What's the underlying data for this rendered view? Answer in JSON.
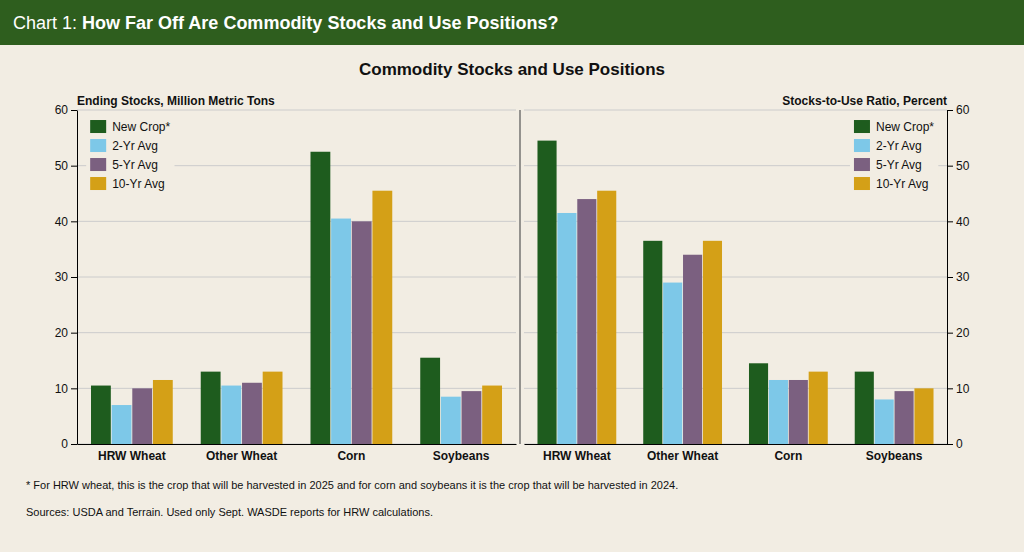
{
  "banner": {
    "prefix": "Chart 1: ",
    "text": "How Far Off Are Commodity Stocks and Use Positions?"
  },
  "title": "Commodity Stocks and Use Positions",
  "footnotes": [
    "* For HRW wheat, this is the crop that will be harvested in 2025 and for corn and soybeans it is the crop that will be harvested in 2024.",
    "Sources: USDA and Terrain. Used only Sept. WASDE reports for HRW calculations."
  ],
  "chart_data": [
    {
      "type": "bar",
      "ylabel": "Ending Stocks, Million Metric Tons",
      "categories": [
        "HRW Wheat",
        "Other Wheat",
        "Corn",
        "Soybeans"
      ],
      "series": [
        {
          "name": "New Crop*",
          "color": "#1e5c1e",
          "values": [
            10.5,
            13.0,
            52.5,
            15.5
          ]
        },
        {
          "name": "2-Yr Avg",
          "color": "#7dc8e8",
          "values": [
            7.0,
            10.5,
            40.5,
            8.5
          ]
        },
        {
          "name": "5-Yr Avg",
          "color": "#7b6080",
          "values": [
            10.0,
            11.0,
            40.0,
            9.5
          ]
        },
        {
          "name": "10-Yr Avg",
          "color": "#d4a017",
          "values": [
            11.5,
            13.0,
            45.5,
            10.5
          ]
        }
      ],
      "ylim": [
        0,
        60
      ],
      "yticks": [
        0,
        10,
        20,
        30,
        40,
        50,
        60
      ],
      "grid": true,
      "legend": "upper left"
    },
    {
      "type": "bar",
      "ylabel": "Stocks-to-Use Ratio, Percent",
      "categories": [
        "HRW Wheat",
        "Other Wheat",
        "Corn",
        "Soybeans"
      ],
      "series": [
        {
          "name": "New Crop*",
          "color": "#1e5c1e",
          "values": [
            54.5,
            36.5,
            14.5,
            13.0
          ]
        },
        {
          "name": "2-Yr Avg",
          "color": "#7dc8e8",
          "values": [
            41.5,
            29.0,
            11.5,
            8.0
          ]
        },
        {
          "name": "5-Yr Avg",
          "color": "#7b6080",
          "values": [
            44.0,
            34.0,
            11.5,
            9.5
          ]
        },
        {
          "name": "10-Yr Avg",
          "color": "#d4a017",
          "values": [
            45.5,
            36.5,
            13.0,
            10.0
          ]
        }
      ],
      "ylim": [
        0,
        60
      ],
      "yticks": [
        0,
        10,
        20,
        30,
        40,
        50,
        60
      ],
      "grid": true,
      "legend": "upper right"
    }
  ]
}
